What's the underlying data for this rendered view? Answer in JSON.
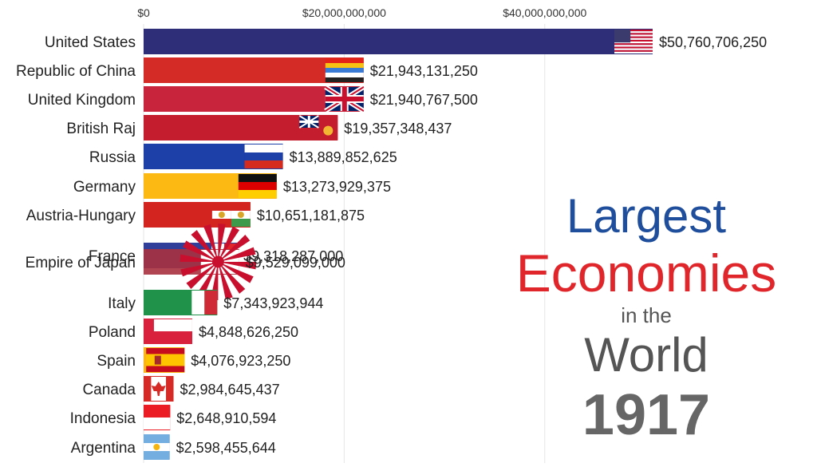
{
  "chart_data": {
    "type": "bar",
    "orientation": "horizontal",
    "xlabel": "",
    "ylabel": "",
    "xlim": [
      0,
      50760706250
    ],
    "ticks": [
      {
        "value": 0,
        "label": "$0"
      },
      {
        "value": 20000000000,
        "label": "$20,000,000,000"
      },
      {
        "value": 40000000000,
        "label": "$40,000,000,000"
      }
    ],
    "categories": [
      "United States",
      "Republic of China",
      "United Kingdom",
      "British Raj",
      "Russia",
      "Germany",
      "Austria-Hungary",
      "France",
      "Empire of Japan",
      "Italy",
      "Poland",
      "Spain",
      "Canada",
      "Indonesia",
      "Argentina"
    ],
    "values": [
      50760706250,
      21943131250,
      21940767500,
      19357348437,
      13889852625,
      13273929375,
      10651181875,
      9318287000,
      9529099000,
      7343923944,
      4848626250,
      4076923250,
      2984645437,
      2648910594,
      2598455644
    ],
    "value_labels": [
      "$50,760,706,250",
      "$21,943,131,250",
      "$21,940,767,500",
      "$19,357,348,437",
      "$13,889,852,625",
      "$13,273,929,375",
      "$10,651,181,875",
      "$9,318,287,000",
      "$9,529,099,000",
      "$7,343,923,944",
      "$4,848,626,250",
      "$4,076,923,250",
      "$2,984,645,437",
      "$2,648,910,594",
      "$2,598,455,644"
    ],
    "colors": [
      "#2e2d78",
      "#d42b27",
      "#c8243b",
      "#c41e2e",
      "#1d3fa8",
      "#fdb913",
      "#d3241f",
      "#2f3f9a",
      "#a8313f",
      "#20924a",
      "#d9203d",
      "#fbb515",
      "#d52a25",
      "#ec1c24",
      "#74aee0"
    ],
    "flag_icons": [
      "usa-flag-icon",
      "roc-five-stripe-flag-icon",
      "union-jack-flag-icon",
      "british-raj-flag-icon",
      "russia-flag-icon",
      "germany-flag-icon",
      "austria-hungary-flag-icon",
      "france-flag-icon",
      "japan-rising-sun-flag-icon",
      "italy-flag-icon",
      "poland-flag-icon",
      "spain-flag-icon",
      "canada-flag-icon",
      "indonesia-flag-icon",
      "argentina-flag-icon"
    ],
    "overlapping_pair": [
      "France",
      "Empire of Japan"
    ],
    "grid": false
  },
  "title": {
    "line1": "Largest",
    "line2": "Economies",
    "line3": "in the",
    "line4": "World",
    "year": "1917",
    "line1_color": "#1f4e9c",
    "line2_color": "#e0262b",
    "line3_color": "#555555",
    "line4_color": "#555555",
    "year_color": "#666666"
  }
}
